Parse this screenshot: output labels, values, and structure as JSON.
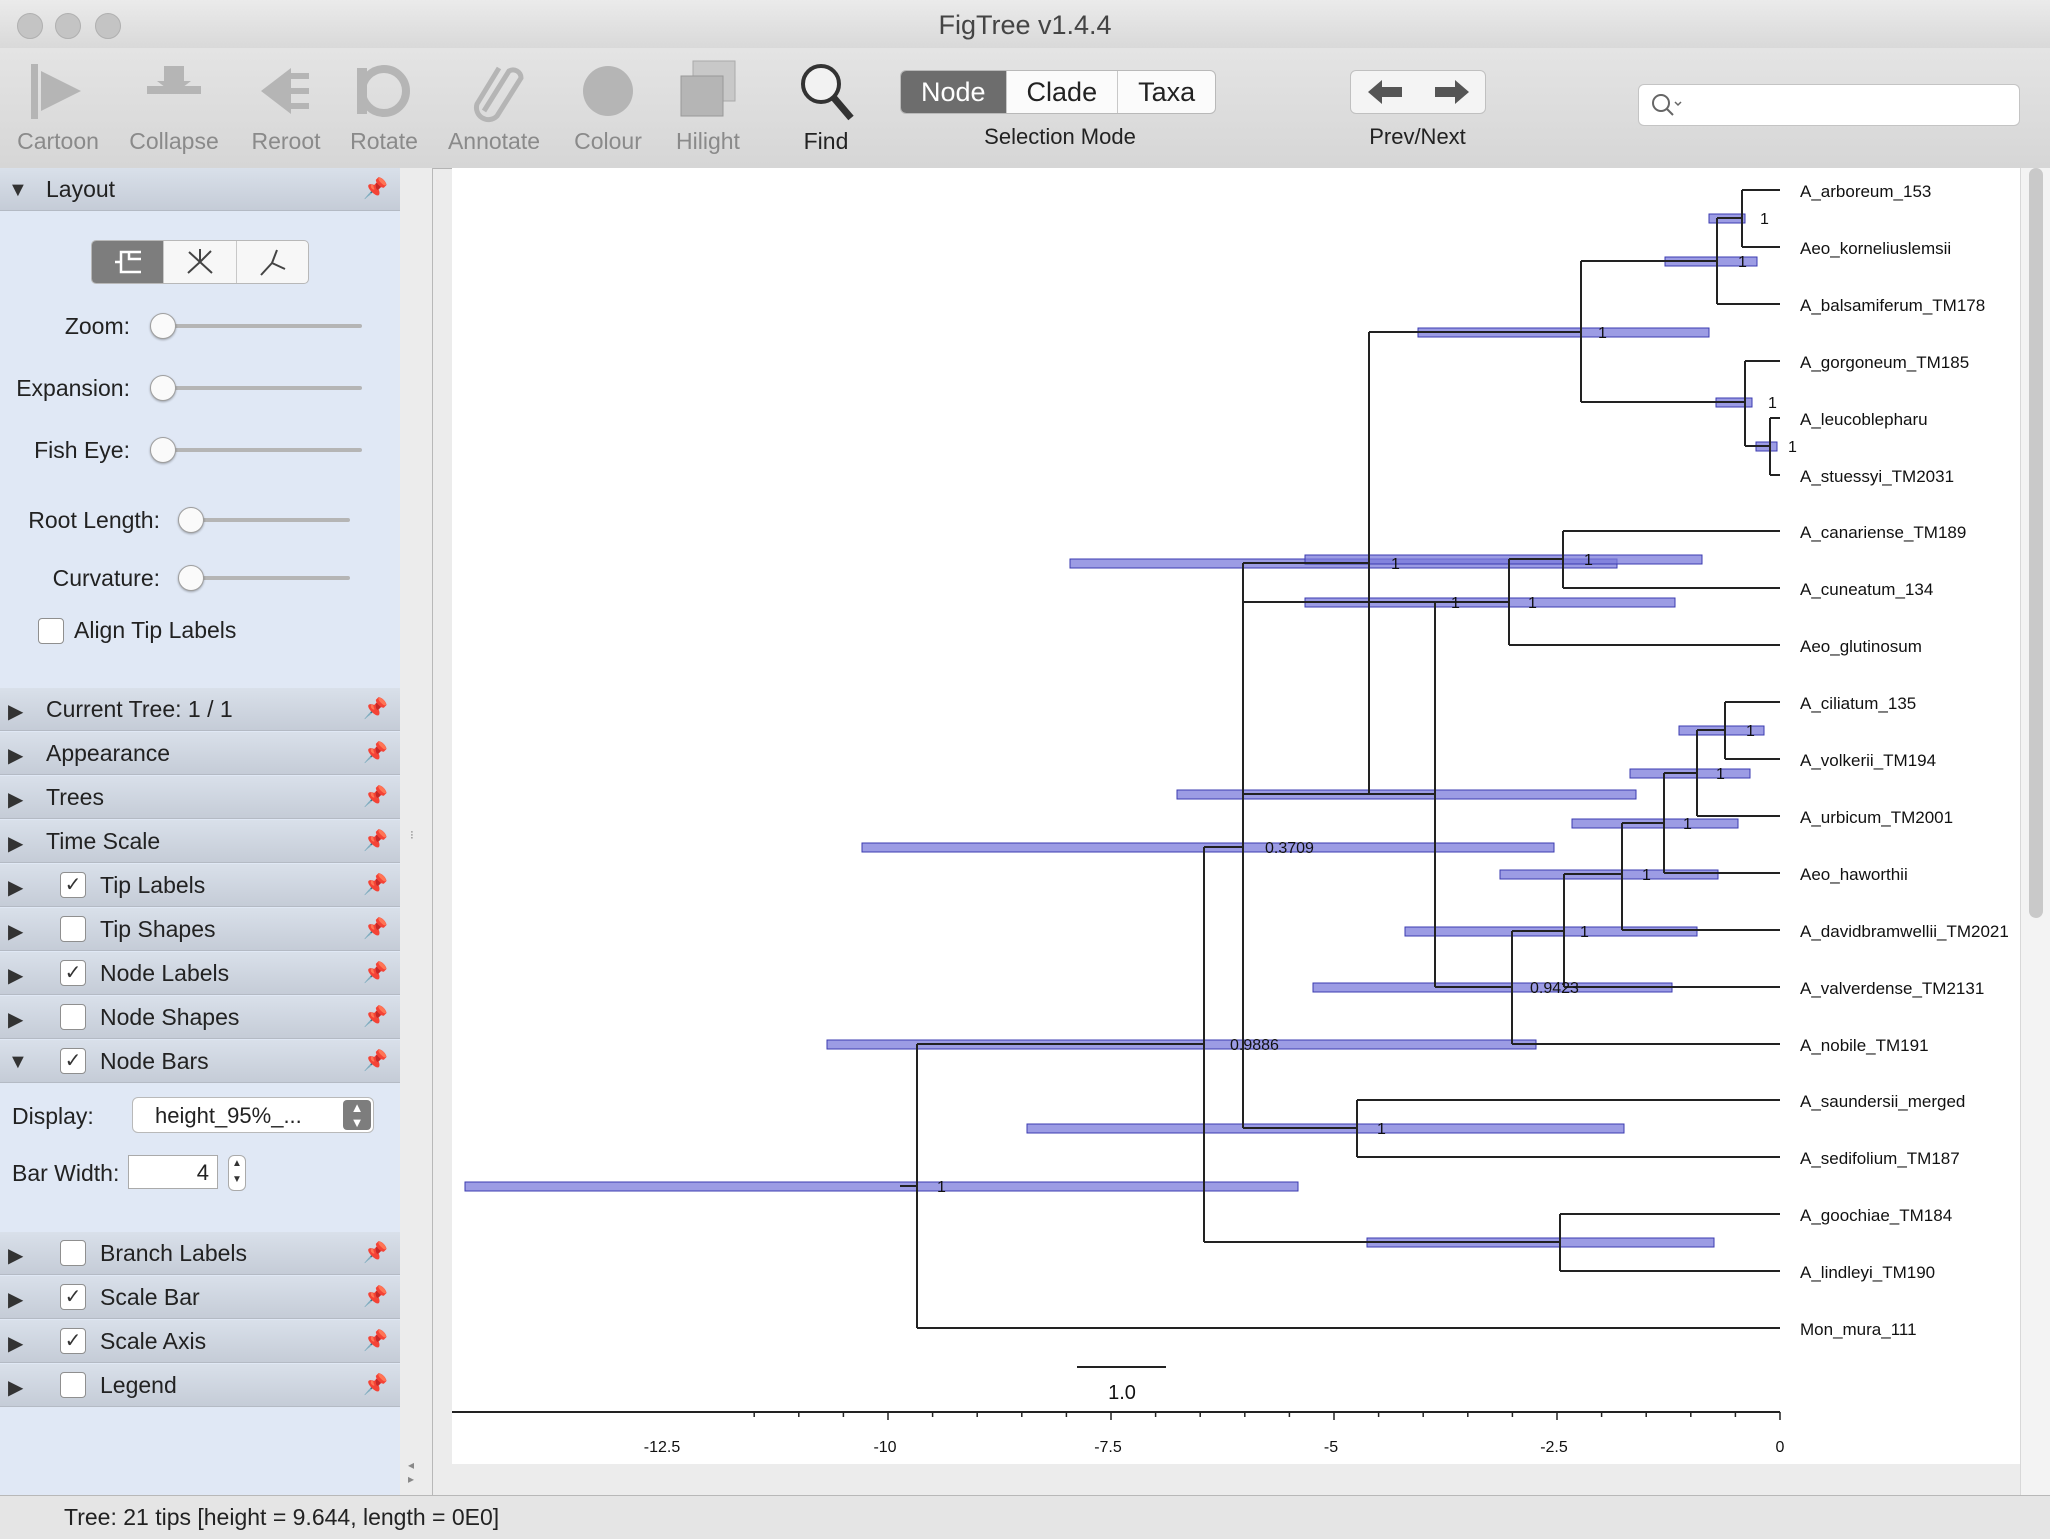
{
  "window": {
    "title": "FigTree v1.4.4"
  },
  "toolbar": {
    "cartoon": "Cartoon",
    "collapse": "Collapse",
    "reroot": "Reroot",
    "rotate": "Rotate",
    "annotate": "Annotate",
    "colour": "Colour",
    "hilight": "Hilight",
    "find": "Find",
    "selection_modes": [
      "Node",
      "Clade",
      "Taxa"
    ],
    "selection_active": "Node",
    "selection_caption": "Selection Mode",
    "prevnext_caption": "Prev/Next",
    "search_placeholder": ""
  },
  "sidebar": {
    "layout_title": "Layout",
    "zoom": "Zoom:",
    "expansion": "Expansion:",
    "fisheye": "Fish Eye:",
    "root_length": "Root Length:",
    "curvature": "Curvature:",
    "align_tip_labels": "Align Tip Labels",
    "sections": [
      {
        "label": "Current Tree: 1 / 1",
        "checkbox": null
      },
      {
        "label": "Appearance",
        "checkbox": null
      },
      {
        "label": "Trees",
        "checkbox": null
      },
      {
        "label": "Time Scale",
        "checkbox": null
      },
      {
        "label": "Tip Labels",
        "checkbox": true
      },
      {
        "label": "Tip Shapes",
        "checkbox": false
      },
      {
        "label": "Node Labels",
        "checkbox": true
      },
      {
        "label": "Node Shapes",
        "checkbox": false
      },
      {
        "label": "Node Bars",
        "checkbox": true,
        "expanded": true
      }
    ],
    "node_bars": {
      "display_label": "Display:",
      "display_value": "height_95%_...",
      "bar_width_label": "Bar Width:",
      "bar_width": "4"
    },
    "sections_after": [
      {
        "label": "Branch Labels",
        "checkbox": false
      },
      {
        "label": "Scale Bar",
        "checkbox": true
      },
      {
        "label": "Scale Axis",
        "checkbox": true
      },
      {
        "label": "Legend",
        "checkbox": false
      }
    ]
  },
  "tree": {
    "tips": [
      "A_arboreum_153",
      "Aeo_korneliuslemsii",
      "A_balsamiferum_TM178",
      "A_gorgoneum_TM185",
      "A_leucoblepharu",
      "A_stuessyi_TM2031",
      "A_canariense_TM189",
      "A_cuneatum_134",
      "Aeo_glutinosum",
      "A_ciliatum_135",
      "A_volkerii_TM194",
      "A_urbicum_TM2001",
      "Aeo_haworthii",
      "A_davidbramwellii_TM2021",
      "A_valverdense_TM2131",
      "A_nobile_TM191",
      "A_saundersii_merged",
      "A_sedifolium_TM187",
      "A_goochiae_TM184",
      "A_lindleyi_TM190",
      "Mon_mura_111"
    ],
    "node_labels": [
      "1",
      "1",
      "1",
      "1",
      "1",
      "1",
      "1",
      "1",
      "1",
      "1",
      "1",
      "1",
      "1",
      "1",
      "0.9423",
      "0.3709",
      "0.9886",
      "1",
      "1"
    ],
    "scale_bar_label": "1.0",
    "axis_ticks": [
      "-12.5",
      "-10",
      "-7.5",
      "-5",
      "-2.5",
      "0"
    ],
    "highlight_color": "#7b7bdb"
  },
  "status": {
    "text": "Tree: 21 tips [height = 9.644, length = 0E0]"
  }
}
